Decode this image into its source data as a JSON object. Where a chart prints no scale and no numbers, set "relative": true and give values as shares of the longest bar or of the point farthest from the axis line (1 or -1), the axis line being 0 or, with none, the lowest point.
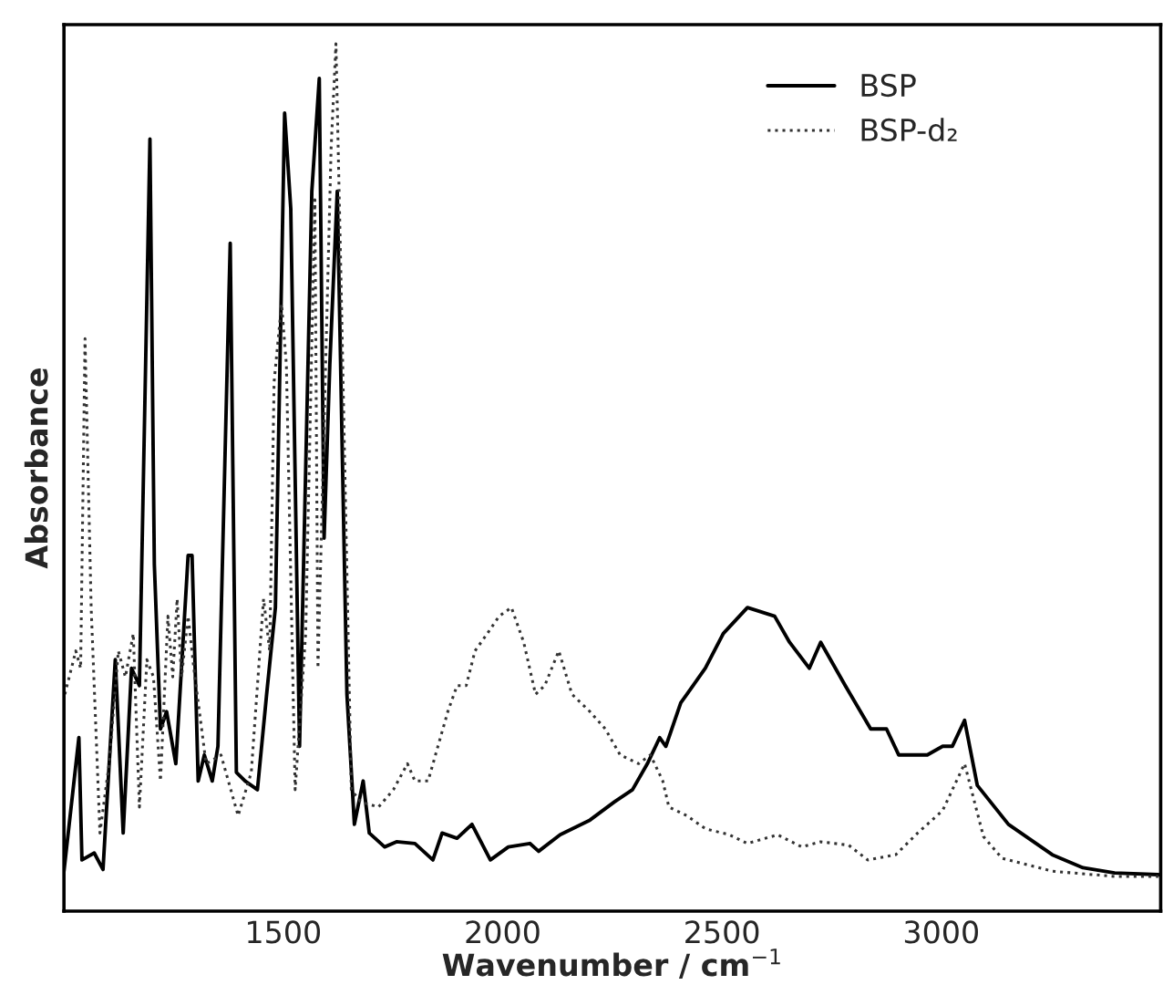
{
  "chart_data": {
    "type": "line",
    "relative": true,
    "xlabel": "Wavenumber / cm$^{−1}$",
    "ylabel": "Absorbance",
    "xlim": [
      1000,
      3500
    ],
    "xticks": [
      1500,
      2000,
      2500,
      3000
    ],
    "legend": "top right",
    "marker": "none",
    "grid": false,
    "series": [
      {
        "name": "BSP",
        "color": "#000000",
        "line_style": "solid",
        "x": [
          1000,
          1034,
          1041,
          1069,
          1089,
          1117,
          1135,
          1154,
          1172,
          1196,
          1206,
          1220,
          1234,
          1255,
          1283,
          1292,
          1306,
          1320,
          1338,
          1351,
          1379,
          1393,
          1413,
          1441,
          1462,
          1482,
          1503,
          1517,
          1537,
          1565,
          1582,
          1593,
          1606,
          1623,
          1645,
          1662,
          1682,
          1696,
          1731,
          1758,
          1800,
          1841,
          1862,
          1896,
          1930,
          1972,
          2013,
          2062,
          2082,
          2131,
          2199,
          2255,
          2296,
          2330,
          2358,
          2372,
          2406,
          2462,
          2503,
          2558,
          2620,
          2654,
          2699,
          2725,
          2781,
          2839,
          2875,
          2903,
          2968,
          3003,
          3025,
          3053,
          3082,
          3153,
          3253,
          3323,
          3395,
          3495
        ],
        "values": [
          0.046,
          0.2,
          0.059,
          0.067,
          0.048,
          0.29,
          0.09,
          0.28,
          0.26,
          0.89,
          0.4,
          0.21,
          0.23,
          0.17,
          0.41,
          0.41,
          0.15,
          0.18,
          0.15,
          0.19,
          0.77,
          0.16,
          0.15,
          0.14,
          0.25,
          0.35,
          0.92,
          0.81,
          0.19,
          0.83,
          0.96,
          0.43,
          0.63,
          0.83,
          0.25,
          0.1,
          0.15,
          0.09,
          0.074,
          0.08,
          0.078,
          0.059,
          0.09,
          0.084,
          0.1,
          0.059,
          0.074,
          0.078,
          0.069,
          0.088,
          0.105,
          0.126,
          0.14,
          0.17,
          0.2,
          0.19,
          0.24,
          0.28,
          0.32,
          0.35,
          0.34,
          0.31,
          0.28,
          0.31,
          0.26,
          0.21,
          0.21,
          0.18,
          0.18,
          0.19,
          0.19,
          0.22,
          0.145,
          0.1,
          0.065,
          0.05,
          0.044,
          0.042
        ]
      },
      {
        "name": "BSP-d₂",
        "color": "#333333",
        "line_style": "dotted",
        "x": [
          1002,
          1027,
          1038,
          1048,
          1062,
          1082,
          1103,
          1124,
          1140,
          1158,
          1172,
          1189,
          1204,
          1220,
          1237,
          1248,
          1258,
          1268,
          1283,
          1296,
          1324,
          1358,
          1397,
          1427,
          1455,
          1469,
          1479,
          1496,
          1507,
          1527,
          1551,
          1572,
          1579,
          1593,
          1609,
          1620,
          1631,
          1655,
          1676,
          1717,
          1751,
          1783,
          1800,
          1830,
          1875,
          1896,
          1917,
          1937,
          1965,
          1992,
          2020,
          2048,
          2075,
          2096,
          2128,
          2158,
          2199,
          2234,
          2268,
          2310,
          2337,
          2365,
          2379,
          2420,
          2462,
          2517,
          2558,
          2627,
          2682,
          2725,
          2789,
          2832,
          2896,
          2946,
          3003,
          3053,
          3096,
          3138,
          3253,
          3395,
          3495
        ],
        "values": [
          0.25,
          0.3,
          0.28,
          0.66,
          0.35,
          0.09,
          0.17,
          0.3,
          0.27,
          0.32,
          0.12,
          0.29,
          0.27,
          0.15,
          0.34,
          0.27,
          0.36,
          0.27,
          0.34,
          0.28,
          0.17,
          0.18,
          0.11,
          0.16,
          0.36,
          0.3,
          0.61,
          0.7,
          0.63,
          0.14,
          0.32,
          0.82,
          0.28,
          0.56,
          0.88,
          1.0,
          0.74,
          0.14,
          0.126,
          0.12,
          0.14,
          0.17,
          0.15,
          0.15,
          0.23,
          0.26,
          0.26,
          0.3,
          0.32,
          0.34,
          0.35,
          0.31,
          0.25,
          0.26,
          0.3,
          0.25,
          0.23,
          0.21,
          0.18,
          0.17,
          0.18,
          0.15,
          0.12,
          0.11,
          0.095,
          0.088,
          0.078,
          0.088,
          0.074,
          0.08,
          0.076,
          0.059,
          0.065,
          0.09,
          0.116,
          0.17,
          0.086,
          0.061,
          0.046,
          0.04,
          0.04
        ]
      }
    ]
  }
}
